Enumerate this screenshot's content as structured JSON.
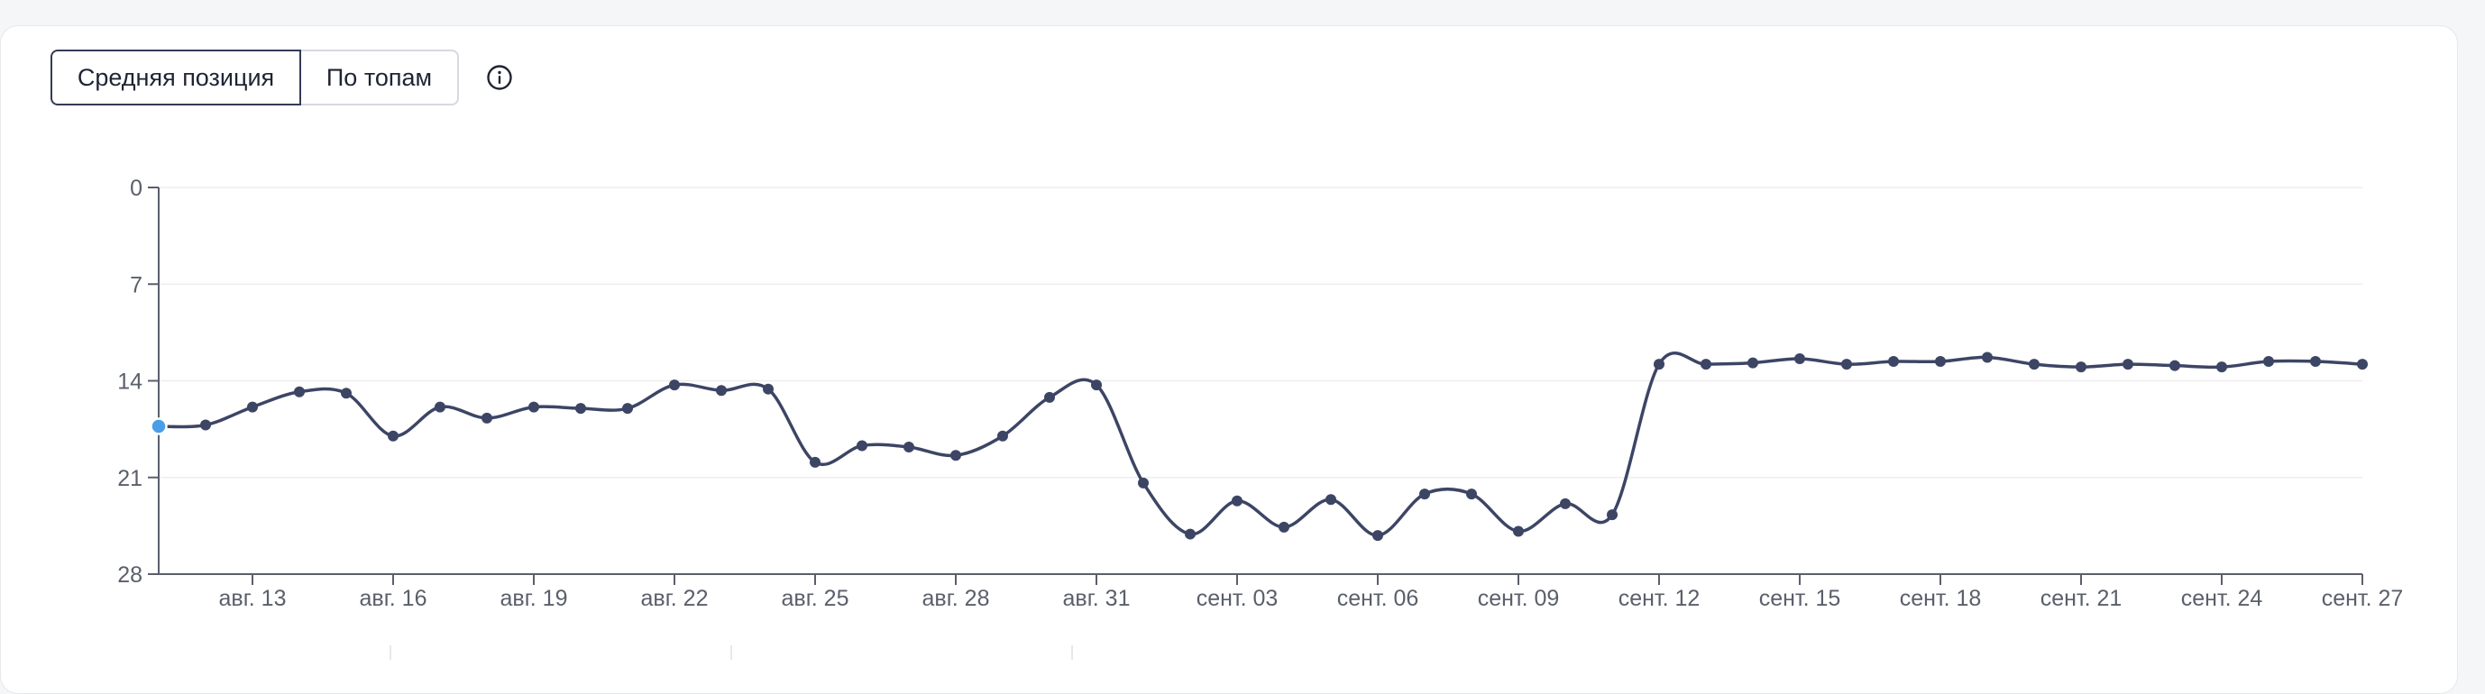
{
  "tabs": [
    {
      "label": "Средняя позиция",
      "active": true
    },
    {
      "label": "По топам",
      "active": false
    }
  ],
  "info_icon": "info-circle-icon",
  "colors": {
    "line": "#3d4565",
    "axis": "#5a5f6b",
    "grid": "#eeeeee",
    "highlight": "#4a9ee8"
  },
  "chart_data": {
    "type": "line",
    "title": "",
    "xlabel": "",
    "ylabel": "",
    "y_inverted": true,
    "ylim": [
      0,
      28
    ],
    "yticks": [
      0,
      7,
      14,
      21,
      28
    ],
    "grid": true,
    "x_tick_labels": [
      "авг. 13",
      "авг. 16",
      "авг. 19",
      "авг. 22",
      "авг. 25",
      "авг. 28",
      "авг. 31",
      "сент. 03",
      "сент. 06",
      "сент. 09",
      "сент. 12",
      "сент. 15",
      "сент. 18",
      "сент. 21",
      "сент. 24",
      "сент. 27"
    ],
    "x": [
      "авг. 11",
      "авг. 12",
      "авг. 13",
      "авг. 14",
      "авг. 15",
      "авг. 16",
      "авг. 17",
      "авг. 18",
      "авг. 19",
      "авг. 20",
      "авг. 21",
      "авг. 22",
      "авг. 23",
      "авг. 24",
      "авг. 25",
      "авг. 26",
      "авг. 27",
      "авг. 28",
      "авг. 29",
      "авг. 30",
      "авг. 31",
      "сент. 01",
      "сент. 02",
      "сент. 03",
      "сент. 04",
      "сент. 05",
      "сент. 06",
      "сент. 07",
      "сент. 08",
      "сент. 09",
      "сент. 10",
      "сент. 11",
      "сент. 12",
      "сент. 13",
      "сент. 14",
      "сент. 15",
      "сент. 16",
      "сент. 17",
      "сент. 18",
      "сент. 19",
      "сент. 20",
      "сент. 21",
      "сент. 22",
      "сент. 23",
      "сент. 24",
      "сент. 25",
      "сент. 26",
      "сент. 27"
    ],
    "series": [
      {
        "values": [
          17.3,
          17.2,
          15.9,
          14.8,
          14.9,
          18.0,
          15.9,
          16.7,
          15.9,
          16.0,
          16.0,
          14.3,
          14.7,
          14.6,
          19.9,
          18.7,
          18.8,
          19.4,
          18.0,
          15.2,
          14.3,
          21.4,
          25.1,
          22.7,
          24.6,
          22.6,
          25.2,
          22.2,
          22.2,
          24.9,
          22.9,
          23.7,
          12.8,
          12.8,
          12.7,
          12.4,
          12.8,
          12.6,
          12.6,
          12.3,
          12.8,
          13.0,
          12.8,
          12.9,
          13.0,
          12.6,
          12.6,
          12.8
        ]
      }
    ]
  }
}
